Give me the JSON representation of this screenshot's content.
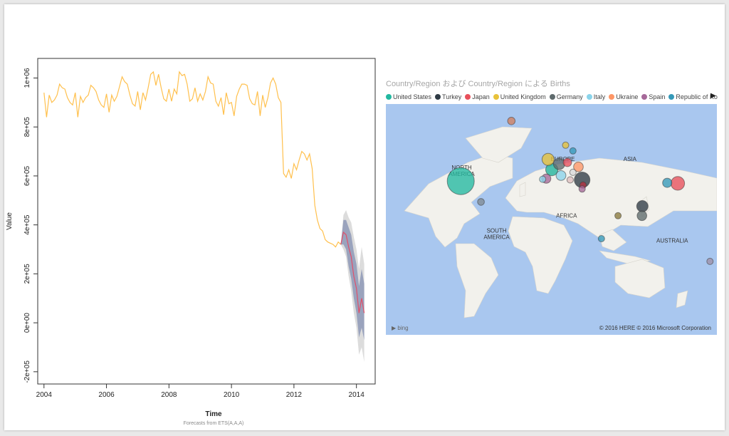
{
  "chart_data": [
    {
      "type": "line",
      "title": "",
      "xlabel": "Time",
      "ylabel": "Value",
      "caption": "Forecasts from ETS(A,A,A)",
      "xlim": [
        2003.8,
        2014.6
      ],
      "ylim": [
        -250000,
        1080000
      ],
      "x_ticks": [
        2004,
        2006,
        2008,
        2010,
        2012,
        2014
      ],
      "x_tick_labels": [
        "2004",
        "2006",
        "2008",
        "2010",
        "2012",
        "2014"
      ],
      "y_ticks": [
        -200000,
        0,
        200000,
        400000,
        600000,
        800000,
        1000000
      ],
      "y_tick_labels": [
        "-2e+05",
        "0e+00",
        "2e+05",
        "4e+05",
        "6e+05",
        "8e+05",
        "1e+06"
      ],
      "series": [
        {
          "role": "observed",
          "color": "#ffc04d",
          "x": [
            2004.0,
            2004.083,
            2004.167,
            2004.25,
            2004.333,
            2004.417,
            2004.5,
            2004.583,
            2004.667,
            2004.75,
            2004.833,
            2004.917,
            2005.0,
            2005.083,
            2005.167,
            2005.25,
            2005.333,
            2005.417,
            2005.5,
            2005.583,
            2005.667,
            2005.75,
            2005.833,
            2005.917,
            2006.0,
            2006.083,
            2006.167,
            2006.25,
            2006.333,
            2006.417,
            2006.5,
            2006.583,
            2006.667,
            2006.75,
            2006.833,
            2006.917,
            2007.0,
            2007.083,
            2007.167,
            2007.25,
            2007.333,
            2007.417,
            2007.5,
            2007.583,
            2007.667,
            2007.75,
            2007.833,
            2007.917,
            2008.0,
            2008.083,
            2008.167,
            2008.25,
            2008.333,
            2008.417,
            2008.5,
            2008.583,
            2008.667,
            2008.75,
            2008.833,
            2008.917,
            2009.0,
            2009.083,
            2009.167,
            2009.25,
            2009.333,
            2009.417,
            2009.5,
            2009.583,
            2009.667,
            2009.75,
            2009.833,
            2009.917,
            2010.0,
            2010.083,
            2010.167,
            2010.25,
            2010.333,
            2010.417,
            2010.5,
            2010.583,
            2010.667,
            2010.75,
            2010.833,
            2010.917,
            2011.0,
            2011.083,
            2011.167,
            2011.25,
            2011.333,
            2011.417,
            2011.5,
            2011.583,
            2011.667,
            2011.75,
            2011.833,
            2011.917,
            2012.0,
            2012.083,
            2012.167,
            2012.25,
            2012.333,
            2012.417,
            2012.5,
            2012.583,
            2012.667,
            2012.75,
            2012.833,
            2012.917,
            2013.0,
            2013.083,
            2013.167,
            2013.25,
            2013.333,
            2013.417,
            2013.5
          ],
          "y": [
            940000,
            840000,
            930000,
            900000,
            910000,
            930000,
            975000,
            960000,
            955000,
            920000,
            900000,
            890000,
            940000,
            840000,
            925000,
            900000,
            920000,
            930000,
            970000,
            960000,
            945000,
            910000,
            890000,
            880000,
            935000,
            860000,
            930000,
            905000,
            925000,
            965000,
            1005000,
            985000,
            975000,
            930000,
            895000,
            885000,
            945000,
            870000,
            940000,
            910000,
            960000,
            1015000,
            1025000,
            970000,
            1015000,
            960000,
            915000,
            905000,
            955000,
            905000,
            955000,
            935000,
            1025000,
            1010000,
            1015000,
            975000,
            905000,
            915000,
            960000,
            905000,
            935000,
            910000,
            945000,
            1005000,
            980000,
            975000,
            905000,
            885000,
            920000,
            850000,
            940000,
            895000,
            900000,
            845000,
            925000,
            955000,
            975000,
            975000,
            970000,
            915000,
            895000,
            890000,
            945000,
            845000,
            930000,
            880000,
            920000,
            980000,
            1000000,
            975000,
            920000,
            900000,
            610000,
            595000,
            625000,
            590000,
            650000,
            625000,
            665000,
            700000,
            690000,
            665000,
            690000,
            630000,
            480000,
            420000,
            385000,
            375000,
            340000,
            330000,
            325000,
            320000,
            310000,
            330000,
            320000
          ]
        },
        {
          "role": "forecast",
          "color": "#e0506a",
          "x": [
            2013.5,
            2013.583,
            2013.667,
            2013.75,
            2013.833,
            2013.917,
            2014.0,
            2014.083,
            2014.167,
            2014.25
          ],
          "y": [
            320000,
            370000,
            360000,
            310000,
            270000,
            190000,
            140000,
            40000,
            100000,
            40000
          ],
          "lower_80": [
            320000,
            320000,
            300000,
            230000,
            180000,
            100000,
            40000,
            -60000,
            -20000,
            -70000
          ],
          "upper_80": [
            320000,
            420000,
            420000,
            390000,
            360000,
            290000,
            240000,
            150000,
            220000,
            160000
          ],
          "lower_95": [
            320000,
            300000,
            270000,
            190000,
            130000,
            40000,
            -20000,
            -130000,
            -100000,
            -160000
          ],
          "upper_95": [
            320000,
            440000,
            460000,
            430000,
            410000,
            350000,
            300000,
            220000,
            310000,
            240000
          ]
        }
      ]
    },
    {
      "type": "map_bubble",
      "title": "Country/Region および Country/Region による Births",
      "legend_position": "top",
      "legend": [
        {
          "name": "United States",
          "color": "#22b8a0"
        },
        {
          "name": "Turkey",
          "color": "#2f3b45"
        },
        {
          "name": "Japan",
          "color": "#e8505b"
        },
        {
          "name": "United Kingdom",
          "color": "#e8c239"
        },
        {
          "name": "Germany",
          "color": "#5f6b6d"
        },
        {
          "name": "Italy",
          "color": "#8ad4eb"
        },
        {
          "name": "Ukraine",
          "color": "#fe9666"
        },
        {
          "name": "Spain",
          "color": "#a66999"
        },
        {
          "name": "Republic of Korea",
          "color": "#3599b8"
        }
      ],
      "legend_more_icon": "triangle-right-icon",
      "map_labels": [
        {
          "text": "NORTH\nAMERICA",
          "lon": -96,
          "lat": 47
        },
        {
          "text": "EUROPE",
          "lon": 14,
          "lat": 53
        },
        {
          "text": "ASIA",
          "lon": 87,
          "lat": 53
        },
        {
          "text": "AFRICA",
          "lon": 18,
          "lat": 2
        },
        {
          "text": "SOUTH\nAMERICA",
          "lon": -58,
          "lat": -14
        },
        {
          "text": "AUSTRALIA",
          "lon": 133,
          "lat": -24
        }
      ],
      "points": [
        {
          "name": "United States",
          "lon": -97,
          "lat": 38,
          "births": 3900000,
          "color": "#22b8a0"
        },
        {
          "name": "Turkey",
          "lon": 35,
          "lat": 39,
          "births": 1300000,
          "color": "#2f3b45"
        },
        {
          "name": "Japan",
          "lon": 139,
          "lat": 36,
          "births": 1000000,
          "color": "#e8505b"
        },
        {
          "name": "United Kingdom",
          "lon": -2,
          "lat": 54,
          "births": 780000,
          "color": "#e8c239"
        },
        {
          "name": "Germany",
          "lon": 10,
          "lat": 51,
          "births": 700000,
          "color": "#5f6b6d"
        },
        {
          "name": "Italy",
          "lon": 12,
          "lat": 42.5,
          "births": 520000,
          "color": "#8ad4eb"
        },
        {
          "name": "Ukraine",
          "lon": 31,
          "lat": 49,
          "births": 500000,
          "color": "#fe9666"
        },
        {
          "name": "Spain",
          "lon": -4,
          "lat": 40,
          "births": 450000,
          "color": "#a66999"
        },
        {
          "name": "Republic of Korea",
          "lon": 127.5,
          "lat": 36.5,
          "births": 450000,
          "color": "#3599b8"
        },
        {
          "lon": -42,
          "lat": 72,
          "births": 300000,
          "color": "#d17f5e"
        },
        {
          "lon": 2,
          "lat": 47,
          "births": 790000,
          "color": "#1fb39b"
        },
        {
          "lon": 17,
          "lat": 62,
          "births": 120000,
          "color": "#e8c239"
        },
        {
          "lon": 25,
          "lat": 59,
          "births": 100000,
          "color": "#3599b8"
        },
        {
          "lon": 19,
          "lat": 52,
          "births": 380000,
          "color": "#e8505b"
        },
        {
          "lon": 25,
          "lat": 45,
          "births": 200000,
          "color": "#d9d9d9"
        },
        {
          "lon": 36,
          "lat": 34.5,
          "births": 220000,
          "color": "#b33040"
        },
        {
          "lon": 35,
          "lat": 31,
          "births": 170000,
          "color": "#a66999"
        },
        {
          "lon": -8,
          "lat": 39.5,
          "births": 90000,
          "color": "#8ad4eb"
        },
        {
          "lon": 22,
          "lat": 39,
          "births": 110000,
          "color": "#dfbfbf"
        },
        {
          "lon": -75,
          "lat": 18.5,
          "births": 250000,
          "color": "#808a94"
        },
        {
          "lon": 100.5,
          "lat": 14,
          "births": 700000,
          "color": "#2f3b45"
        },
        {
          "lon": 100,
          "lat": 4,
          "births": 500000,
          "color": "#5f6b6d"
        },
        {
          "lon": 56,
          "lat": -20.2,
          "births": 25000,
          "color": "#3599b8"
        },
        {
          "lon": 74,
          "lat": 4,
          "births": 8000,
          "color": "#8a7a3c"
        },
        {
          "lon": 174,
          "lat": -41,
          "births": 60000,
          "color": "#9e90a8"
        }
      ],
      "attribution": "© 2016 HERE   © 2016 Microsoft Corporation",
      "bing_label": "bing"
    }
  ]
}
